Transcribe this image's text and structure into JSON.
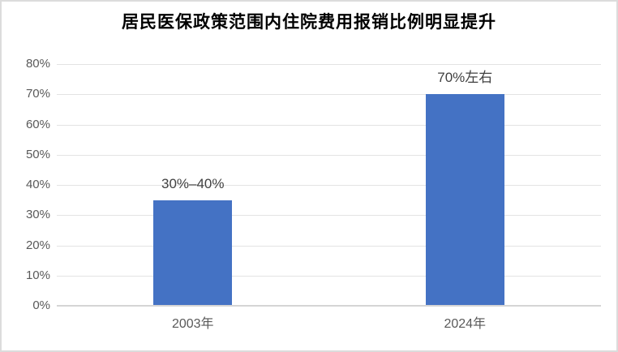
{
  "chart_data": {
    "type": "bar",
    "title": "居民医保政策范围内住院费用报销比例明显提升",
    "categories": [
      "2003年",
      "2024年"
    ],
    "values": [
      35,
      70
    ],
    "value_labels": [
      "30%–40%",
      "70%左右"
    ],
    "ylim": [
      0,
      80
    ],
    "ytick_step": 10,
    "ytick_labels": [
      "0%",
      "10%",
      "20%",
      "30%",
      "40%",
      "50%",
      "60%",
      "70%",
      "80%"
    ],
    "xlabel": "",
    "ylabel": "",
    "grid": true,
    "legend_position": "none",
    "bar_color": "#4472C4"
  },
  "colors": {
    "bar": "#4472C4",
    "gridline": "#E3E3E3",
    "axis_line": "#D5D5D5",
    "tick_text": "#595959",
    "value_label_text": "#404040",
    "title_text": "#000000",
    "frame_border": "#DCDCDC",
    "background": "#FFFFFF"
  }
}
